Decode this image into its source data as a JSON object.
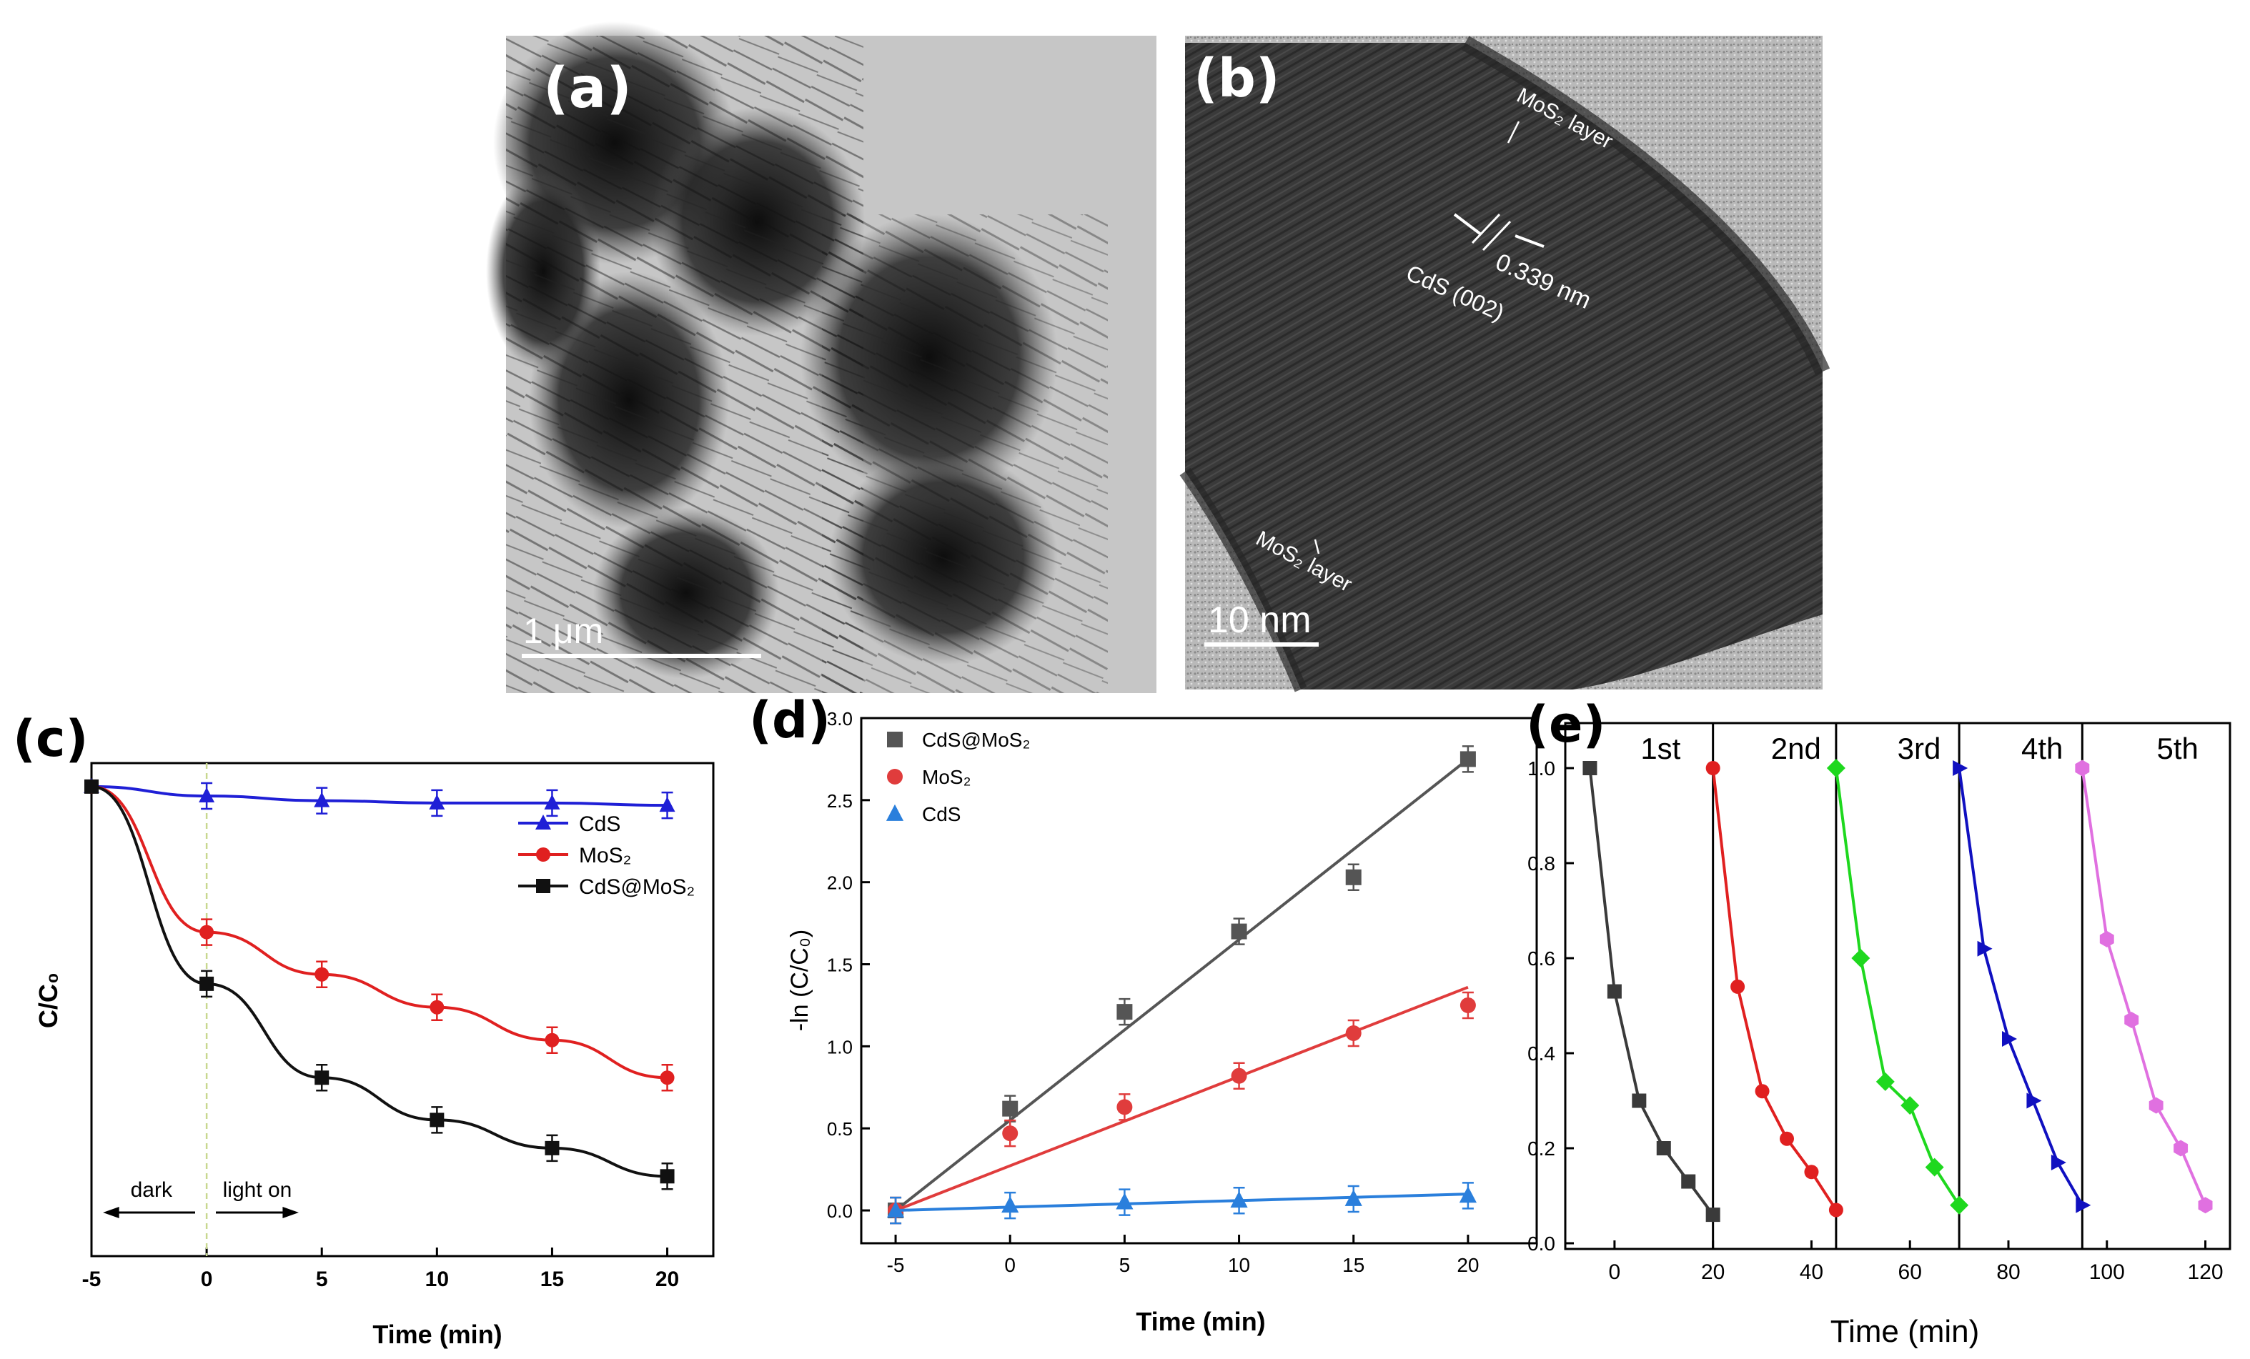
{
  "figure": {
    "panel_a": {
      "letter": "(a)",
      "scale_bar": "1 μm",
      "colors": {
        "background": "#c6c6c6",
        "fibers": "#141414"
      }
    },
    "panel_b": {
      "letter": "(b)",
      "scale_bar": "10 nm",
      "annotations": [
        "MoS₂ layer",
        "0.339 nm",
        "CdS (002)",
        "MoS₂ layer"
      ],
      "colors": {
        "lattice_dark": "#1c1c1c",
        "edge_light": "#d9d9d9"
      }
    }
  },
  "chart_data": [
    {
      "panel": "(c)",
      "type": "line",
      "xlabel": "Time (min)",
      "ylabel": "C/C₀",
      "x_ticks": [
        "-5",
        "0",
        "5",
        "10",
        "15",
        "20"
      ],
      "xlim": [
        -5,
        22
      ],
      "ylim": [
        0,
        1.05
      ],
      "y_ticks_shown": false,
      "legend_position": "upper-right",
      "annotations": [
        "dark",
        "light on"
      ],
      "grid": false,
      "series": [
        {
          "name": "CdS",
          "color": "#1f1fd6",
          "marker": "triangle",
          "x": [
            -5,
            0,
            5,
            10,
            15,
            20
          ],
          "y": [
            1.0,
            0.98,
            0.97,
            0.965,
            0.965,
            0.96
          ]
        },
        {
          "name": "MoS₂",
          "color": "#e02020",
          "marker": "circle",
          "x": [
            -5,
            0,
            5,
            10,
            15,
            20
          ],
          "y": [
            1.0,
            0.69,
            0.6,
            0.53,
            0.46,
            0.38
          ]
        },
        {
          "name": "CdS@MoS₂",
          "color": "#111111",
          "marker": "square",
          "x": [
            -5,
            0,
            5,
            10,
            15,
            20
          ],
          "y": [
            1.0,
            0.58,
            0.38,
            0.29,
            0.23,
            0.17
          ]
        }
      ]
    },
    {
      "panel": "(d)",
      "type": "scatter",
      "xlabel": "Time (min)",
      "ylabel": "-ln (C/C₀)",
      "x_ticks": [
        "-5",
        "0",
        "5",
        "10",
        "15",
        "20"
      ],
      "y_ticks": [
        "0.0",
        "0.5",
        "1.0",
        "1.5",
        "2.0",
        "2.5",
        "3.0"
      ],
      "xlim": [
        -6.5,
        23
      ],
      "ylim": [
        -0.2,
        3.0
      ],
      "legend_position": "upper-left",
      "grid": false,
      "series": [
        {
          "name": "CdS@MoS₂",
          "color": "#555555",
          "marker": "square",
          "x": [
            -5,
            0,
            5,
            10,
            15,
            20
          ],
          "y": [
            0.0,
            0.62,
            1.21,
            1.7,
            2.03,
            2.75
          ],
          "fit": [
            [
              -5,
              0.0
            ],
            [
              20,
              2.75
            ]
          ]
        },
        {
          "name": "MoS₂",
          "color": "#e03c3c",
          "marker": "circle",
          "x": [
            -5,
            0,
            5,
            10,
            15,
            20
          ],
          "y": [
            0.0,
            0.47,
            0.63,
            0.82,
            1.08,
            1.25
          ],
          "fit": [
            [
              -5,
              0.0
            ],
            [
              20,
              1.36
            ]
          ]
        },
        {
          "name": "CdS",
          "color": "#2a7fdc",
          "marker": "triangle",
          "x": [
            -5,
            0,
            5,
            10,
            15,
            20
          ],
          "y": [
            0.0,
            0.03,
            0.05,
            0.06,
            0.07,
            0.09
          ],
          "fit": [
            [
              -5,
              0.0
            ],
            [
              20,
              0.1
            ]
          ]
        }
      ]
    },
    {
      "panel": "(e)",
      "type": "line",
      "xlabel": "Time (min)",
      "ylabel": "",
      "x_ticks": [
        "0",
        "20",
        "40",
        "60",
        "80",
        "100",
        "120"
      ],
      "y_ticks": [
        "0.0",
        "0.2",
        "0.4",
        "0.6",
        "0.8",
        "1.0"
      ],
      "xlim": [
        -10,
        125
      ],
      "ylim": [
        0,
        1.0
      ],
      "cycle_labels": [
        "1st",
        "2nd",
        "3rd",
        "4th",
        "5th"
      ],
      "cycle_separators": [
        20,
        45,
        70,
        95
      ],
      "grid": false,
      "series": [
        {
          "name": "1st",
          "color": "#3a3a3a",
          "marker": "square",
          "x": [
            -5,
            0,
            5,
            10,
            15,
            20
          ],
          "y": [
            1.0,
            0.53,
            0.3,
            0.2,
            0.13,
            0.06
          ]
        },
        {
          "name": "2nd",
          "color": "#e02020",
          "marker": "circle",
          "x": [
            20,
            25,
            30,
            35,
            40,
            45
          ],
          "y": [
            1.0,
            0.54,
            0.32,
            0.22,
            0.15,
            0.07
          ]
        },
        {
          "name": "3rd",
          "color": "#1ed81e",
          "marker": "diamond",
          "x": [
            45,
            50,
            55,
            60,
            65,
            70
          ],
          "y": [
            1.0,
            0.6,
            0.34,
            0.29,
            0.16,
            0.08
          ]
        },
        {
          "name": "4th",
          "color": "#1010c0",
          "marker": "triangle-right",
          "x": [
            70,
            75,
            80,
            85,
            90,
            95
          ],
          "y": [
            1.0,
            0.62,
            0.43,
            0.3,
            0.17,
            0.08
          ]
        },
        {
          "name": "5th",
          "color": "#e070e0",
          "marker": "hexagon",
          "x": [
            95,
            100,
            105,
            110,
            115,
            120
          ],
          "y": [
            1.0,
            0.64,
            0.47,
            0.29,
            0.2,
            0.08
          ]
        }
      ]
    }
  ]
}
